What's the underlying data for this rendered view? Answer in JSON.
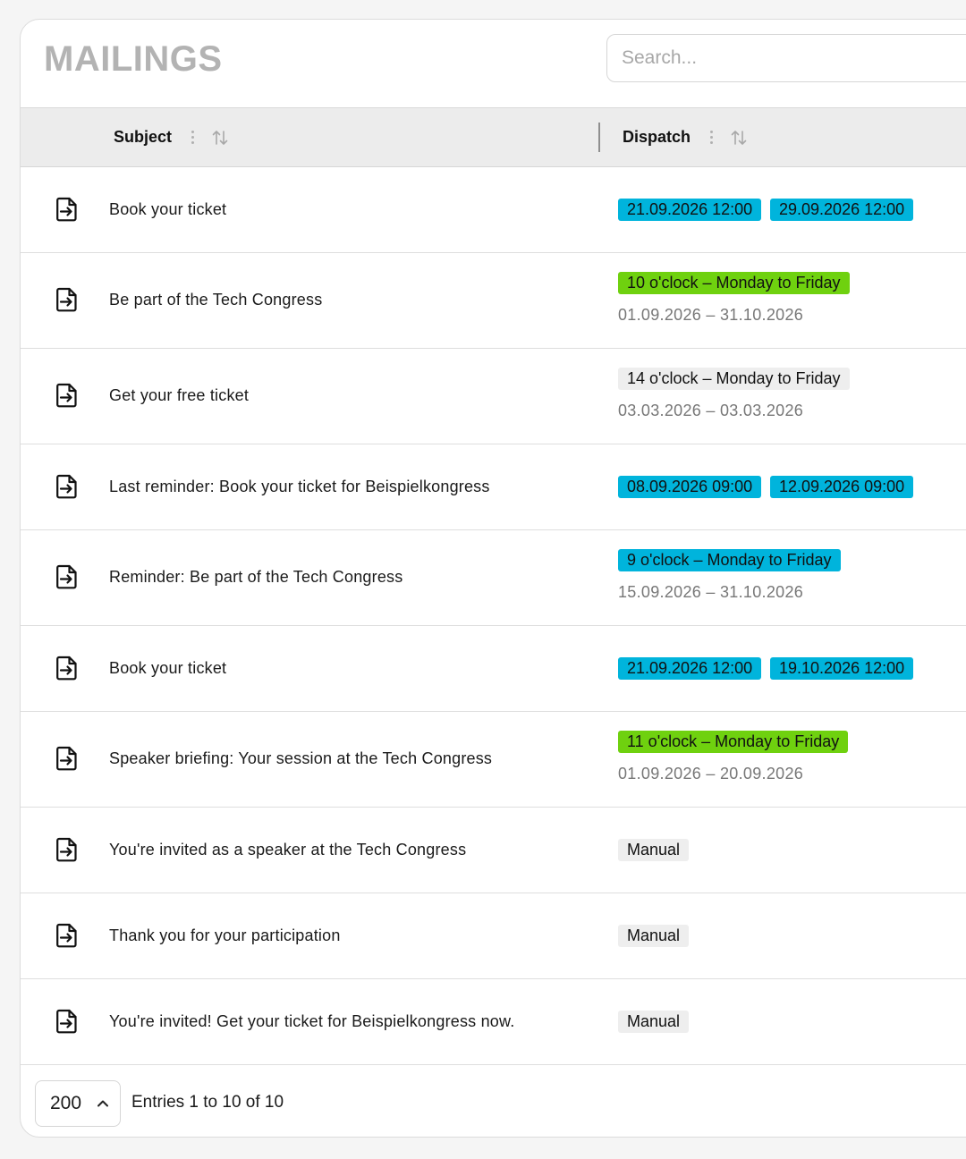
{
  "header": {
    "title": "MAILINGS",
    "search_placeholder": "Search..."
  },
  "columns": {
    "subject": "Subject",
    "dispatch": "Dispatch"
  },
  "colors": {
    "blue_chip": "#00b4dc",
    "green_chip": "#6fd10f",
    "grey_chip": "#eeeeee"
  },
  "rows": [
    {
      "subject": "Book your ticket",
      "chips": [
        {
          "text": "21.09.2026 12:00",
          "color": "blue"
        },
        {
          "text": "29.09.2026 12:00",
          "color": "blue"
        }
      ],
      "range": ""
    },
    {
      "subject": "Be part of the Tech Congress",
      "chips": [
        {
          "text": "10 o'clock – Monday to Friday",
          "color": "green"
        }
      ],
      "range": "01.09.2026 – 31.10.2026"
    },
    {
      "subject": "Get your free ticket",
      "chips": [
        {
          "text": "14 o'clock – Monday to Friday",
          "color": "grey"
        }
      ],
      "range": "03.03.2026 – 03.03.2026"
    },
    {
      "subject": "Last reminder: Book your ticket for Beispielkongress",
      "chips": [
        {
          "text": "08.09.2026 09:00",
          "color": "blue"
        },
        {
          "text": "12.09.2026 09:00",
          "color": "blue"
        }
      ],
      "range": ""
    },
    {
      "subject": "Reminder: Be part of the Tech Congress",
      "chips": [
        {
          "text": "9 o'clock – Monday to Friday",
          "color": "blue"
        }
      ],
      "range": "15.09.2026 – 31.10.2026"
    },
    {
      "subject": "Book your ticket",
      "chips": [
        {
          "text": "21.09.2026 12:00",
          "color": "blue"
        },
        {
          "text": "19.10.2026 12:00",
          "color": "blue"
        }
      ],
      "range": ""
    },
    {
      "subject": "Speaker briefing: Your session at the Tech Congress",
      "chips": [
        {
          "text": "11 o'clock – Monday to Friday",
          "color": "green"
        }
      ],
      "range": "01.09.2026 – 20.09.2026"
    },
    {
      "subject": "You're invited as a speaker at the Tech Congress",
      "chips": [
        {
          "text": "Manual",
          "color": "grey"
        }
      ],
      "range": ""
    },
    {
      "subject": "Thank you for your participation",
      "chips": [
        {
          "text": "Manual",
          "color": "grey"
        }
      ],
      "range": ""
    },
    {
      "subject": "You're invited! Get your ticket for Beispielkongress now.",
      "chips": [
        {
          "text": "Manual",
          "color": "grey"
        }
      ],
      "range": ""
    }
  ],
  "footer": {
    "page_size": "200",
    "entries_text": "Entries 1 to 10 of 10"
  }
}
